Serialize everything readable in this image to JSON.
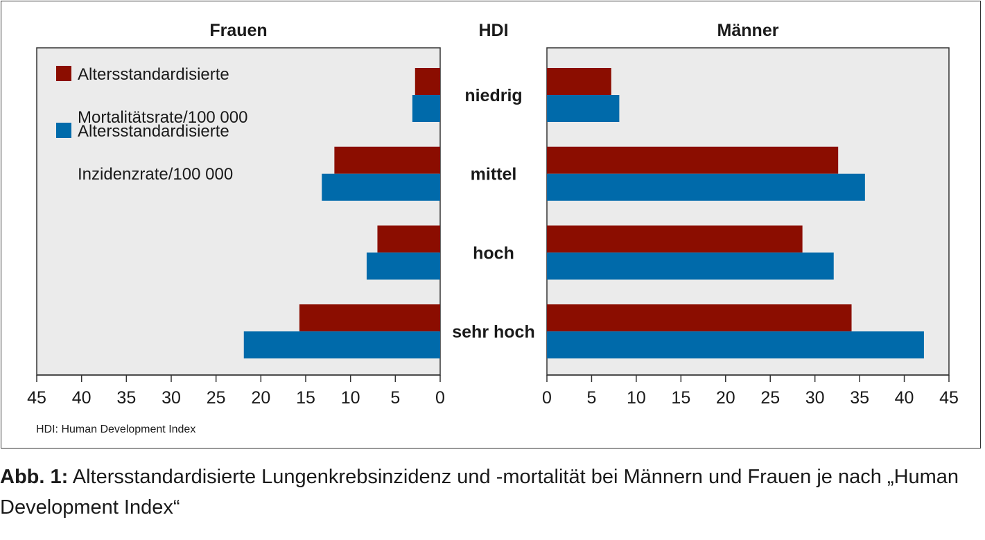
{
  "chart_data": {
    "type": "bar",
    "orientation": "horizontal",
    "layout": "butterfly",
    "center_axis_title": "HDI",
    "categories": [
      "niedrig",
      "mittel",
      "hoch",
      "sehr hoch"
    ],
    "panels": [
      {
        "title": "Frauen",
        "direction": "left",
        "xlim": [
          0,
          45
        ],
        "ticks": [
          0,
          5,
          10,
          15,
          20,
          25,
          30,
          35,
          40,
          45
        ],
        "series": [
          {
            "name": "Altersstandardisierte Mortalitätsrate/100 000",
            "values": [
              2.8,
              11.8,
              7.0,
              15.7
            ]
          },
          {
            "name": "Altersstandardisierte Inzidenzrate/100 000",
            "values": [
              3.1,
              13.2,
              8.2,
              21.9
            ]
          }
        ]
      },
      {
        "title": "Männer",
        "direction": "right",
        "xlim": [
          0,
          45
        ],
        "ticks": [
          0,
          5,
          10,
          15,
          20,
          25,
          30,
          35,
          40,
          45
        ],
        "series": [
          {
            "name": "Altersstandardisierte Mortalitätsrate/100 000",
            "values": [
              7.2,
              32.6,
              28.6,
              34.1
            ]
          },
          {
            "name": "Altersstandardisierte Inzidenzrate/100 000",
            "values": [
              8.1,
              35.6,
              32.1,
              42.2
            ]
          }
        ]
      }
    ],
    "legend": {
      "placement": "top-left of left panel",
      "items": [
        {
          "lines": [
            "Altersstandardisierte",
            "Mortalitätsrate/100 000"
          ],
          "color": "#8b0d00"
        },
        {
          "lines": [
            "Altersstandardisierte",
            "Inzidenzrate/100 000"
          ],
          "color": "#006aaa"
        }
      ]
    },
    "colors": {
      "mortality": "#8b0d00",
      "incidence": "#006aaa",
      "plot_background": "#ebebeb"
    },
    "grid": false
  },
  "footnote": "HDI: Human Development Index",
  "caption": {
    "label": "Abb. 1:",
    "text": " Altersstandardisierte Lungenkrebsinzidenz und -mortalität bei Männern und Frauen je nach „Human Development Index“"
  }
}
